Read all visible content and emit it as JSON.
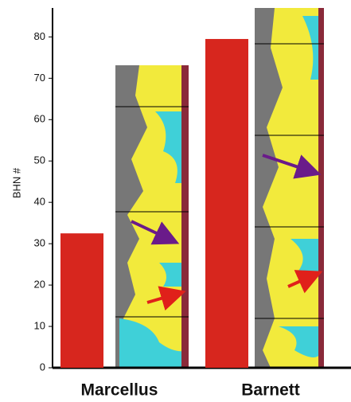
{
  "chart_data": {
    "type": "bar",
    "y_label": "BHN #",
    "categories": [
      "Marcellus",
      "Barnett"
    ],
    "values": [
      32.5,
      79.5
    ],
    "color": "#d7261e",
    "ylim": [
      0,
      87
    ],
    "yticks": [
      0,
      10,
      20,
      30,
      40,
      50,
      60,
      70,
      80
    ]
  }
}
